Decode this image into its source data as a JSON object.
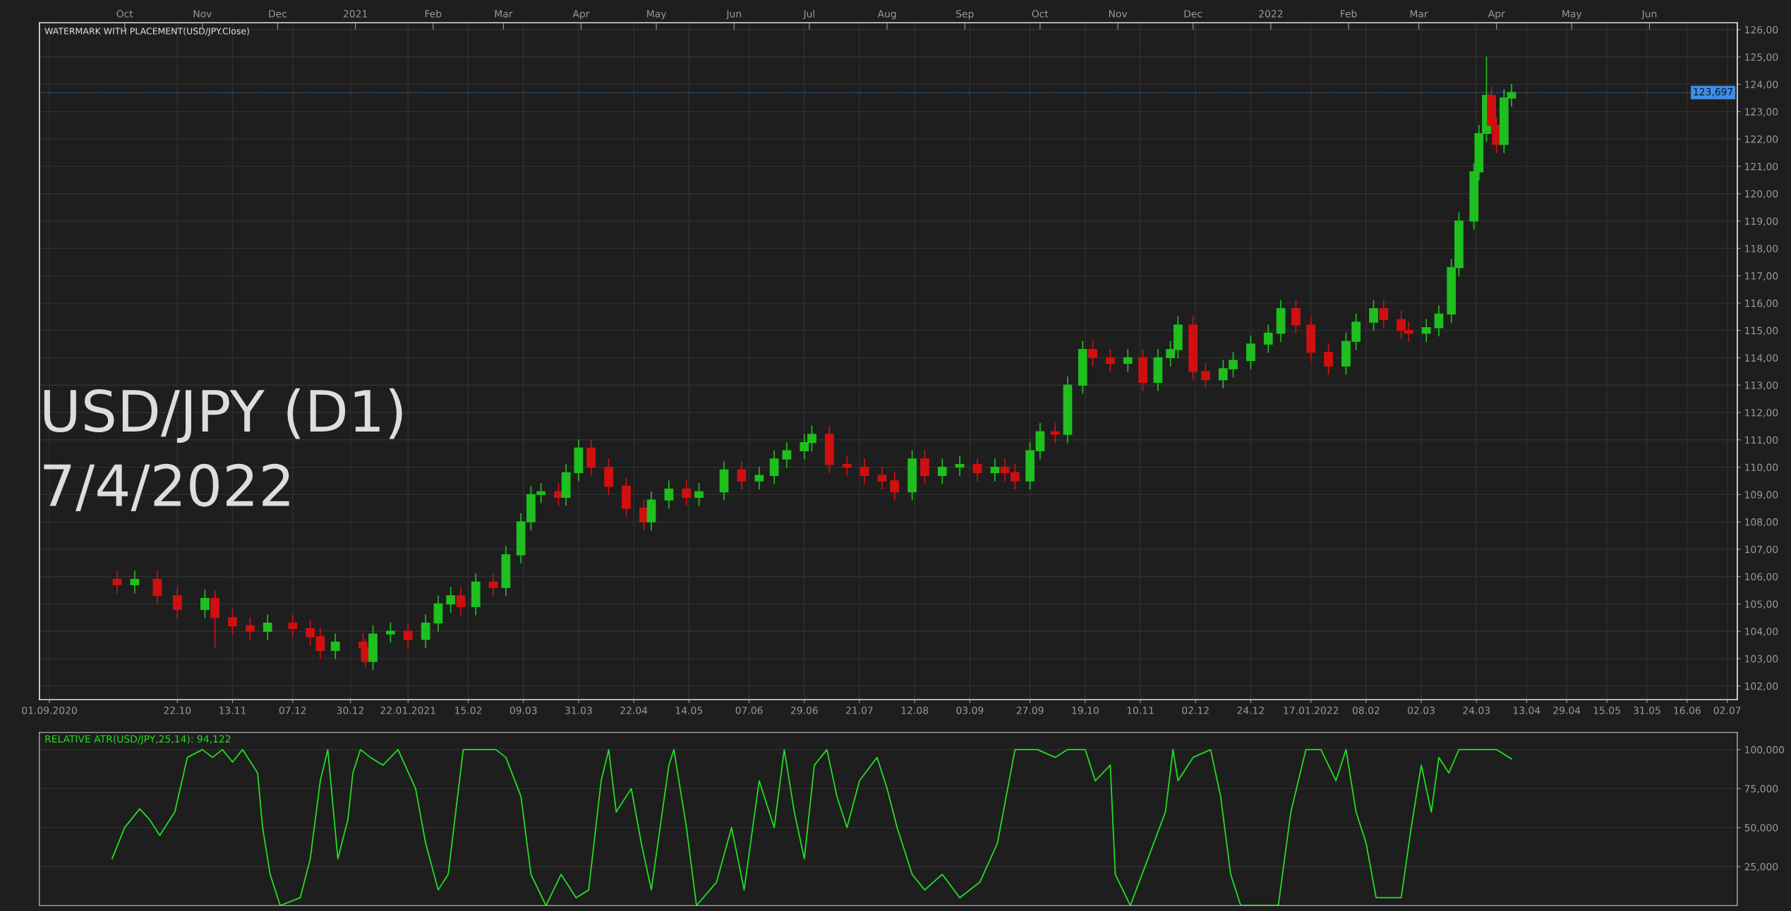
{
  "chart_data": [
    {
      "type": "candlestick",
      "annotations": [
        "WATERMARK WITH PLACEMENT(USD/JPY.Close)",
        "USD/JPY (D1)",
        "7/4/2022"
      ],
      "x": [
        "2020-09-28",
        "2020-10-05",
        "2020-10-14",
        "2020-10-22",
        "2020-11-02",
        "2020-11-06",
        "2020-11-13",
        "2020-11-20",
        "2020-11-27",
        "2020-12-07",
        "2020-12-14",
        "2020-12-18",
        "2020-12-24",
        "2021-01-04",
        "2021-01-05",
        "2021-01-08",
        "2021-01-15",
        "2021-01-22",
        "2021-01-29",
        "2021-02-03",
        "2021-02-08",
        "2021-02-12",
        "2021-02-18",
        "2021-02-25",
        "2021-03-02",
        "2021-03-08",
        "2021-03-12",
        "2021-03-16",
        "2021-03-23",
        "2021-03-26",
        "2021-03-31",
        "2021-04-05",
        "2021-04-12",
        "2021-04-19",
        "2021-04-26",
        "2021-04-29",
        "2021-05-06",
        "2021-05-13",
        "2021-05-18",
        "2021-05-28",
        "2021-06-04",
        "2021-06-11",
        "2021-06-17",
        "2021-06-22",
        "2021-06-29",
        "2021-07-02",
        "2021-07-09",
        "2021-07-16",
        "2021-07-23",
        "2021-07-30",
        "2021-08-04",
        "2021-08-11",
        "2021-08-16",
        "2021-08-23",
        "2021-08-30",
        "2021-09-06",
        "2021-09-13",
        "2021-09-17",
        "2021-09-21",
        "2021-09-27",
        "2021-10-01",
        "2021-10-07",
        "2021-10-12",
        "2021-10-18",
        "2021-10-22",
        "2021-10-29",
        "2021-11-05",
        "2021-11-11",
        "2021-11-17",
        "2021-11-22",
        "2021-11-25",
        "2021-12-01",
        "2021-12-06",
        "2021-12-13",
        "2021-12-17",
        "2021-12-24",
        "2021-12-31",
        "2022-01-05",
        "2022-01-11",
        "2022-01-17",
        "2022-01-24",
        "2022-01-31",
        "2022-02-04",
        "2022-02-11",
        "2022-02-15",
        "2022-02-22",
        "2022-02-25",
        "2022-03-04",
        "2022-03-09",
        "2022-03-14",
        "2022-03-17",
        "2022-03-23",
        "2022-03-25",
        "2022-03-28",
        "2022-03-30",
        "2022-04-01",
        "2022-04-04",
        "2022-04-07"
      ],
      "ohlc": [
        [
          105.9,
          106.2,
          105.4,
          105.7
        ],
        [
          105.7,
          106.2,
          105.4,
          105.9
        ],
        [
          105.9,
          106.2,
          105.0,
          105.3
        ],
        [
          105.3,
          105.6,
          104.5,
          104.8
        ],
        [
          104.8,
          105.5,
          104.5,
          105.2
        ],
        [
          105.2,
          105.5,
          103.4,
          104.5
        ],
        [
          104.5,
          104.8,
          103.9,
          104.2
        ],
        [
          104.2,
          104.5,
          103.7,
          104.0
        ],
        [
          104.0,
          104.6,
          103.7,
          104.3
        ],
        [
          104.3,
          104.6,
          103.8,
          104.1
        ],
        [
          104.1,
          104.4,
          103.5,
          103.8
        ],
        [
          103.8,
          104.1,
          103.0,
          103.3
        ],
        [
          103.3,
          103.9,
          103.0,
          103.6
        ],
        [
          103.6,
          103.9,
          103.1,
          103.4
        ],
        [
          103.4,
          103.7,
          102.7,
          102.9
        ],
        [
          102.9,
          104.2,
          102.6,
          103.9
        ],
        [
          103.9,
          104.3,
          103.6,
          104.0
        ],
        [
          104.0,
          104.3,
          103.4,
          103.7
        ],
        [
          103.7,
          104.6,
          103.4,
          104.3
        ],
        [
          104.3,
          105.3,
          104.0,
          105.0
        ],
        [
          105.0,
          105.6,
          104.7,
          105.3
        ],
        [
          105.3,
          105.6,
          104.6,
          104.9
        ],
        [
          104.9,
          106.1,
          104.6,
          105.8
        ],
        [
          105.8,
          106.1,
          105.3,
          105.6
        ],
        [
          105.6,
          107.1,
          105.3,
          106.8
        ],
        [
          106.8,
          108.3,
          106.5,
          108.0
        ],
        [
          108.0,
          109.3,
          107.7,
          109.0
        ],
        [
          109.0,
          109.4,
          108.7,
          109.1
        ],
        [
          109.1,
          109.4,
          108.6,
          108.9
        ],
        [
          108.9,
          110.1,
          108.6,
          109.8
        ],
        [
          109.8,
          111.0,
          109.5,
          110.7
        ],
        [
          110.7,
          111.0,
          109.7,
          110.0
        ],
        [
          110.0,
          110.3,
          109.0,
          109.3
        ],
        [
          109.3,
          109.6,
          108.2,
          108.5
        ],
        [
          108.5,
          108.8,
          107.7,
          108.0
        ],
        [
          108.0,
          109.1,
          107.7,
          108.8
        ],
        [
          108.8,
          109.5,
          108.5,
          109.2
        ],
        [
          109.2,
          109.5,
          108.6,
          108.9
        ],
        [
          108.9,
          109.4,
          108.6,
          109.1
        ],
        [
          109.1,
          110.2,
          108.8,
          109.9
        ],
        [
          109.9,
          110.2,
          109.2,
          109.5
        ],
        [
          109.5,
          110.0,
          109.2,
          109.7
        ],
        [
          109.7,
          110.6,
          109.4,
          110.3
        ],
        [
          110.3,
          110.9,
          110.0,
          110.6
        ],
        [
          110.6,
          111.2,
          110.3,
          110.9
        ],
        [
          110.9,
          111.5,
          110.6,
          111.2
        ],
        [
          111.2,
          111.5,
          109.8,
          110.1
        ],
        [
          110.1,
          110.4,
          109.7,
          110.0
        ],
        [
          110.0,
          110.3,
          109.4,
          109.7
        ],
        [
          109.7,
          110.0,
          109.2,
          109.5
        ],
        [
          109.5,
          109.8,
          108.8,
          109.1
        ],
        [
          109.1,
          110.6,
          108.8,
          110.3
        ],
        [
          110.3,
          110.6,
          109.4,
          109.7
        ],
        [
          109.7,
          110.3,
          109.4,
          110.0
        ],
        [
          110.0,
          110.4,
          109.7,
          110.1
        ],
        [
          110.1,
          110.3,
          109.5,
          109.8
        ],
        [
          109.8,
          110.3,
          109.5,
          110.0
        ],
        [
          110.0,
          110.3,
          109.5,
          109.8
        ],
        [
          109.8,
          110.1,
          109.2,
          109.5
        ],
        [
          109.5,
          110.9,
          109.2,
          110.6
        ],
        [
          110.6,
          111.6,
          110.3,
          111.3
        ],
        [
          111.3,
          111.6,
          110.9,
          111.2
        ],
        [
          111.2,
          113.3,
          110.9,
          113.0
        ],
        [
          113.0,
          114.6,
          112.7,
          114.3
        ],
        [
          114.3,
          114.6,
          113.7,
          114.0
        ],
        [
          114.0,
          114.3,
          113.5,
          113.8
        ],
        [
          113.8,
          114.3,
          113.5,
          114.0
        ],
        [
          114.0,
          114.3,
          112.8,
          113.1
        ],
        [
          113.1,
          114.3,
          112.8,
          114.0
        ],
        [
          114.0,
          114.6,
          113.7,
          114.3
        ],
        [
          114.3,
          115.5,
          114.0,
          115.2
        ],
        [
          115.2,
          115.5,
          113.2,
          113.5
        ],
        [
          113.5,
          113.8,
          112.9,
          113.2
        ],
        [
          113.2,
          113.9,
          112.9,
          113.6
        ],
        [
          113.6,
          114.2,
          113.3,
          113.9
        ],
        [
          113.9,
          114.8,
          113.6,
          114.5
        ],
        [
          114.5,
          115.2,
          114.2,
          114.9
        ],
        [
          114.9,
          116.1,
          114.6,
          115.8
        ],
        [
          115.8,
          116.1,
          114.9,
          115.2
        ],
        [
          115.2,
          115.5,
          113.9,
          114.2
        ],
        [
          114.2,
          114.5,
          113.4,
          113.7
        ],
        [
          113.7,
          114.9,
          113.4,
          114.6
        ],
        [
          114.6,
          115.6,
          114.3,
          115.3
        ],
        [
          115.3,
          116.1,
          115.0,
          115.8
        ],
        [
          115.8,
          116.1,
          115.1,
          115.4
        ],
        [
          115.4,
          115.7,
          114.7,
          115.0
        ],
        [
          115.0,
          115.3,
          114.6,
          114.9
        ],
        [
          114.9,
          115.4,
          114.6,
          115.1
        ],
        [
          115.1,
          115.9,
          114.8,
          115.6
        ],
        [
          115.6,
          117.6,
          115.3,
          117.3
        ],
        [
          117.3,
          119.3,
          117.0,
          119.0
        ],
        [
          119.0,
          121.1,
          118.7,
          120.8
        ],
        [
          120.8,
          122.5,
          120.5,
          122.2
        ],
        [
          122.2,
          125.0,
          121.9,
          123.6
        ],
        [
          123.6,
          123.9,
          122.2,
          122.5
        ],
        [
          122.5,
          122.8,
          121.5,
          121.8
        ],
        [
          121.8,
          123.8,
          121.5,
          123.5
        ],
        [
          123.5,
          124.0,
          123.2,
          123.7
        ]
      ],
      "xlim": [
        "2020-08-28",
        "2022-07-06"
      ],
      "xticks": [
        {
          "value": "2020-09-01",
          "label": "01.09.2020"
        },
        {
          "value": "2020-10-22",
          "label": "22.10"
        },
        {
          "value": "2020-11-13",
          "label": "13.11"
        },
        {
          "value": "2020-12-07",
          "label": "07.12"
        },
        {
          "value": "2020-12-30",
          "label": "30.12"
        },
        {
          "value": "2021-01-22",
          "label": "22.01.2021"
        },
        {
          "value": "2021-02-15",
          "label": "15.02"
        },
        {
          "value": "2021-03-09",
          "label": "09.03"
        },
        {
          "value": "2021-03-31",
          "label": "31.03"
        },
        {
          "value": "2021-04-22",
          "label": "22.04"
        },
        {
          "value": "2021-05-14",
          "label": "14.05"
        },
        {
          "value": "2021-06-07",
          "label": "07.06"
        },
        {
          "value": "2021-06-29",
          "label": "29.06"
        },
        {
          "value": "2021-07-21",
          "label": "21.07"
        },
        {
          "value": "2021-08-12",
          "label": "12.08"
        },
        {
          "value": "2021-09-03",
          "label": "03.09"
        },
        {
          "value": "2021-09-27",
          "label": "27.09"
        },
        {
          "value": "2021-10-19",
          "label": "19.10"
        },
        {
          "value": "2021-11-10",
          "label": "10.11"
        },
        {
          "value": "2021-12-02",
          "label": "02.12"
        },
        {
          "value": "2021-12-24",
          "label": "24.12"
        },
        {
          "value": "2022-01-17",
          "label": "17.01.2022"
        },
        {
          "value": "2022-02-08",
          "label": "08.02"
        },
        {
          "value": "2022-03-02",
          "label": "02.03"
        },
        {
          "value": "2022-03-24",
          "label": "24.03"
        },
        {
          "value": "2022-04-13",
          "label": "13.04"
        },
        {
          "value": "2022-04-29",
          "label": "29.04"
        },
        {
          "value": "2022-05-15",
          "label": "15.05"
        },
        {
          "value": "2022-05-31",
          "label": "31.05"
        },
        {
          "value": "2022-06-16",
          "label": "16.06"
        },
        {
          "value": "2022-07-02",
          "label": "02.07"
        }
      ],
      "x2lim": [
        "2020-08-28",
        "2022-07-06"
      ],
      "x2ticks": [
        {
          "value": "2020-10-01",
          "label": "Oct"
        },
        {
          "value": "2020-11-01",
          "label": "Nov"
        },
        {
          "value": "2020-12-01",
          "label": "Dec"
        },
        {
          "value": "2021-01-01",
          "label": "2021"
        },
        {
          "value": "2021-02-01",
          "label": "Feb"
        },
        {
          "value": "2021-03-01",
          "label": "Mar"
        },
        {
          "value": "2021-04-01",
          "label": "Apr"
        },
        {
          "value": "2021-05-01",
          "label": "May"
        },
        {
          "value": "2021-06-01",
          "label": "Jun"
        },
        {
          "value": "2021-07-01",
          "label": "Jul"
        },
        {
          "value": "2021-08-01",
          "label": "Aug"
        },
        {
          "value": "2021-09-01",
          "label": "Sep"
        },
        {
          "value": "2021-10-01",
          "label": "Oct"
        },
        {
          "value": "2021-11-01",
          "label": "Nov"
        },
        {
          "value": "2021-12-01",
          "label": "Dec"
        },
        {
          "value": "2022-01-01",
          "label": "2022"
        },
        {
          "value": "2022-02-01",
          "label": "Feb"
        },
        {
          "value": "2022-03-01",
          "label": "Mar"
        },
        {
          "value": "2022-04-01",
          "label": "Apr"
        },
        {
          "value": "2022-05-01",
          "label": "May"
        },
        {
          "value": "2022-06-01",
          "label": "Jun"
        }
      ],
      "ylim": [
        101.5,
        126.25
      ],
      "yticks": [
        {
          "value": 102,
          "label": "102,00"
        },
        {
          "value": 103,
          "label": "103,00"
        },
        {
          "value": 104,
          "label": "104,00"
        },
        {
          "value": 105,
          "label": "105,00"
        },
        {
          "value": 106,
          "label": "106,00"
        },
        {
          "value": 107,
          "label": "107,00"
        },
        {
          "value": 108,
          "label": "108,00"
        },
        {
          "value": 109,
          "label": "109,00"
        },
        {
          "value": 110,
          "label": "110,00"
        },
        {
          "value": 111,
          "label": "111,00"
        },
        {
          "value": 112,
          "label": "112,00"
        },
        {
          "value": 113,
          "label": "113,00"
        },
        {
          "value": 114,
          "label": "114,00"
        },
        {
          "value": 115,
          "label": "115,00"
        },
        {
          "value": 116,
          "label": "116,00"
        },
        {
          "value": 117,
          "label": "117,00"
        },
        {
          "value": 118,
          "label": "118,00"
        },
        {
          "value": 119,
          "label": "119,00"
        },
        {
          "value": 120,
          "label": "120,00"
        },
        {
          "value": 121,
          "label": "121,00"
        },
        {
          "value": 122,
          "label": "122,00"
        },
        {
          "value": 123,
          "label": "123,00"
        },
        {
          "value": 124,
          "label": "124,00"
        },
        {
          "value": 125,
          "label": "125,00"
        },
        {
          "value": 126,
          "label": "126,00"
        }
      ],
      "ref_lines": [
        {
          "axis": "y",
          "value": 123.697,
          "label": "123,697",
          "color": "#3d8ee8"
        }
      ],
      "grid": true
    },
    {
      "type": "line",
      "title": "RELATIVE ATR(USD/JPY,25,14): 94,122",
      "series": [
        {
          "color": "#22dd22",
          "x": [
            "2020-09-26",
            "2020-10-01",
            "2020-10-07",
            "2020-10-11",
            "2020-10-15",
            "2020-10-21",
            "2020-10-26",
            "2020-11-01",
            "2020-11-05",
            "2020-11-09",
            "2020-11-13",
            "2020-11-17",
            "2020-11-23",
            "2020-11-25",
            "2020-11-28",
            "2020-12-02",
            "2020-12-10",
            "2020-12-14",
            "2020-12-18",
            "2020-12-21",
            "2020-12-25",
            "2020-12-29",
            "2020-12-31",
            "2021-01-03",
            "2021-01-07",
            "2021-01-12",
            "2021-01-18",
            "2021-01-25",
            "2021-01-29",
            "2021-02-03",
            "2021-02-07",
            "2021-02-13",
            "2021-02-19",
            "2021-02-26",
            "2021-03-02",
            "2021-03-08",
            "2021-03-12",
            "2021-03-18",
            "2021-03-24",
            "2021-03-30",
            "2021-04-04",
            "2021-04-09",
            "2021-04-12",
            "2021-04-15",
            "2021-04-21",
            "2021-04-25",
            "2021-04-29",
            "2021-05-06",
            "2021-05-08",
            "2021-05-13",
            "2021-05-17",
            "2021-05-25",
            "2021-05-31",
            "2021-06-05",
            "2021-06-11",
            "2021-06-17",
            "2021-06-21",
            "2021-06-25",
            "2021-06-29",
            "2021-07-03",
            "2021-07-08",
            "2021-07-12",
            "2021-07-16",
            "2021-07-21",
            "2021-07-28",
            "2021-08-01",
            "2021-08-05",
            "2021-08-11",
            "2021-08-16",
            "2021-08-23",
            "2021-08-30",
            "2021-09-07",
            "2021-09-14",
            "2021-09-21",
            "2021-09-30",
            "2021-10-07",
            "2021-10-12",
            "2021-10-19",
            "2021-10-23",
            "2021-10-29",
            "2021-10-31",
            "2021-11-06",
            "2021-11-13",
            "2021-11-20",
            "2021-11-23",
            "2021-11-25",
            "2021-12-01",
            "2021-12-08",
            "2021-12-12",
            "2021-12-16",
            "2021-12-20",
            "2022-01-04",
            "2022-01-09",
            "2022-01-15",
            "2022-01-21",
            "2022-01-27",
            "2022-01-31",
            "2022-02-04",
            "2022-02-08",
            "2022-02-12",
            "2022-02-22",
            "2022-02-26",
            "2022-03-02",
            "2022-03-06",
            "2022-03-09",
            "2022-03-13",
            "2022-03-17",
            "2022-03-23",
            "2022-03-26",
            "2022-04-01",
            "2022-04-07"
          ],
          "values": [
            30000,
            50000,
            62000,
            55000,
            45000,
            60000,
            95000,
            100000,
            95000,
            100000,
            92000,
            100000,
            85000,
            50000,
            20000,
            0,
            5000,
            30000,
            80000,
            100000,
            30000,
            55000,
            85000,
            100000,
            95000,
            90000,
            100000,
            75000,
            40000,
            10000,
            20000,
            100000,
            100000,
            100000,
            95000,
            70000,
            20000,
            0,
            20000,
            5000,
            10000,
            80000,
            100000,
            60000,
            75000,
            40000,
            10000,
            90000,
            100000,
            50000,
            0,
            15000,
            50000,
            10000,
            80000,
            50000,
            100000,
            60000,
            30000,
            90000,
            100000,
            70000,
            50000,
            80000,
            95000,
            75000,
            50000,
            20000,
            10000,
            20000,
            5000,
            15000,
            40000,
            100000,
            100000,
            95000,
            100000,
            100000,
            80000,
            90000,
            20000,
            0,
            30000,
            60000,
            100000,
            80000,
            95000,
            100000,
            70000,
            20000,
            0,
            0,
            60000,
            100000,
            100000,
            80000,
            100000,
            60000,
            40000,
            5000,
            5000,
            50000,
            90000,
            60000,
            95000,
            85000,
            100000,
            100000,
            100000,
            100000,
            94000
          ]
        }
      ],
      "xlim": [
        "2020-08-28",
        "2022-07-06"
      ],
      "ylim": [
        0,
        111000
      ],
      "yticks": [
        {
          "value": 25000,
          "label": "25,000"
        },
        {
          "value": 50000,
          "label": "50,000"
        },
        {
          "value": 75000,
          "label": "75,000"
        },
        {
          "value": 100000,
          "label": "100,000"
        }
      ],
      "tick_labels": "y",
      "grid": true
    }
  ]
}
